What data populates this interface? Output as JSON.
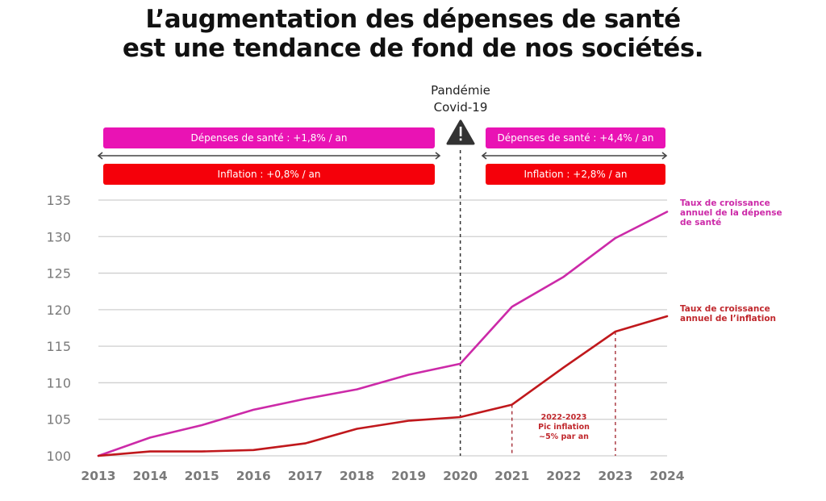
{
  "title": {
    "line1": "L’augmentation des dépenses de santé",
    "line2": "est une tendance de fond de nos sociétés."
  },
  "event": {
    "line1": "Pandémie",
    "line2": "Covid-19",
    "icon": "warning-triangle-icon",
    "year": 2020
  },
  "bands": {
    "before": {
      "sante": "Dépenses de santé : +1,8% / an",
      "inflation": "Inflation : +0,8% / an"
    },
    "after": {
      "sante": "Dépenses de santé : +4,4% / an",
      "inflation": "Inflation : +2,8% / an"
    }
  },
  "legend": {
    "sante": "Taux de croissance annuel de la dépense de santé",
    "sante_lines": [
      "Taux de croissance",
      "annuel de la dépense",
      "de santé"
    ],
    "inflation": "Taux de croissance annuel de l’inflation",
    "inflation_lines": [
      "Taux de croissance",
      "annuel de l’inflation"
    ]
  },
  "annotation": {
    "line1": "2022-2023",
    "line2": "Pic inflation",
    "line3": "~5% par an",
    "range": [
      2021,
      2023
    ]
  },
  "colors": {
    "sante": "#cc2aa8",
    "inflation": "#c0181c",
    "band_sante": "#e913b4",
    "band_inflation": "#f5000a",
    "grid": "#cfcfcf",
    "axis_text": "#7a7a7a",
    "title": "#111111"
  },
  "chart_data": {
    "type": "line",
    "title": "L’augmentation des dépenses de santé est une tendance de fond de nos sociétés.",
    "xlabel": "",
    "ylabel": "",
    "x": [
      2013,
      2014,
      2015,
      2016,
      2017,
      2018,
      2019,
      2020,
      2021,
      2022,
      2023,
      2024
    ],
    "categories": [
      "2013",
      "2014",
      "2015",
      "2016",
      "2017",
      "2018",
      "2019",
      "2020",
      "2021",
      "2022",
      "2023",
      "2024"
    ],
    "yticks": [
      100,
      105,
      110,
      115,
      120,
      125,
      130,
      135
    ],
    "ylim": [
      100,
      135
    ],
    "grid": true,
    "legend_position": "right",
    "series": [
      {
        "name": "Taux de croissance annuel de la dépense de santé",
        "key": "sante",
        "values": [
          100,
          102.5,
          104.2,
          106.3,
          107.8,
          109.1,
          111.1,
          112.6,
          120.4,
          124.5,
          129.8,
          133.4
        ]
      },
      {
        "name": "Taux de croissance annuel de l’inflation",
        "key": "inflation",
        "values": [
          100,
          100.6,
          100.6,
          100.8,
          101.7,
          103.7,
          104.8,
          105.3,
          107.0,
          112.1,
          117.0,
          119.1
        ]
      }
    ],
    "annotations": [
      {
        "type": "vline",
        "x": 2020,
        "label": "Pandémie Covid-19"
      },
      {
        "type": "vline",
        "x": 2021,
        "label": ""
      },
      {
        "type": "vline",
        "x": 2023,
        "label": ""
      },
      {
        "type": "text",
        "label": "2022-2023 Pic inflation ~5% par an"
      }
    ],
    "periods": [
      {
        "range": [
          2013,
          2020
        ],
        "sante_growth": "+1,8% / an",
        "inflation_growth": "+0,8% / an"
      },
      {
        "range": [
          2020,
          2024
        ],
        "sante_growth": "+4,4% / an",
        "inflation_growth": "+2,8% / an"
      }
    ]
  }
}
